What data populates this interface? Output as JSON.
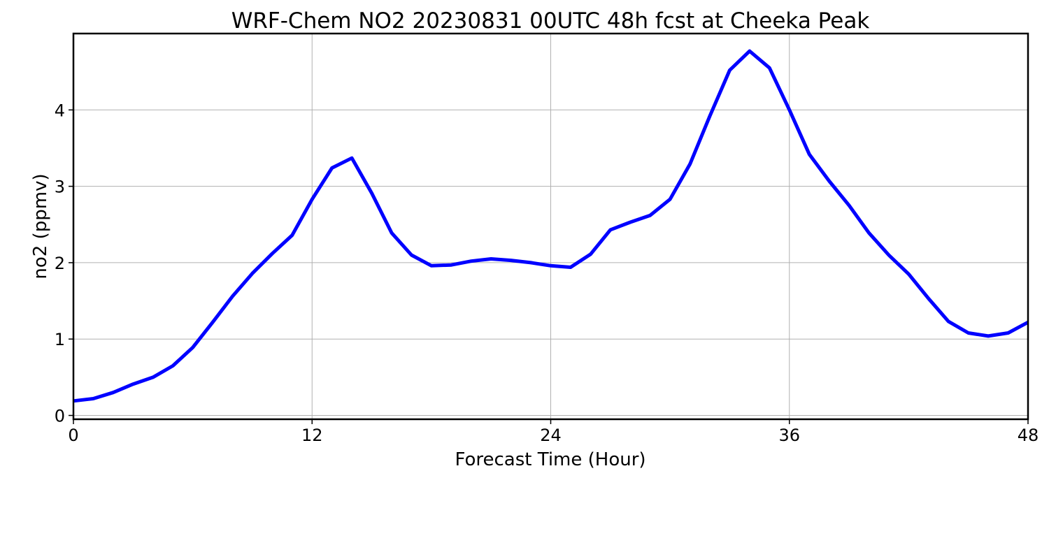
{
  "chart_data": {
    "type": "line",
    "title": "WRF-Chem NO2  20230831 00UTC 48h fcst at Cheeka Peak",
    "xlabel": "Forecast Time (Hour)",
    "ylabel": "no2  (ppmv)",
    "xlim": [
      0,
      48
    ],
    "ylim": [
      -0.05,
      5.0
    ],
    "xticks": [
      0,
      12,
      24,
      36,
      48
    ],
    "yticks": [
      0,
      1,
      2,
      3,
      4
    ],
    "grid": true,
    "line_color": "#0000ff",
    "series": [
      {
        "x": [
          0,
          1,
          2,
          3,
          4,
          5,
          6,
          7,
          8,
          9,
          10,
          11,
          12,
          13,
          14,
          15,
          16,
          17,
          18,
          19,
          20,
          21,
          22,
          23,
          24,
          25,
          26,
          27,
          28,
          29,
          30,
          31,
          32,
          33,
          34,
          35,
          36,
          37,
          38,
          39,
          40,
          41,
          42,
          43,
          44,
          45,
          46,
          47,
          48
        ],
        "values": [
          0.19,
          0.22,
          0.3,
          0.41,
          0.5,
          0.65,
          0.89,
          1.22,
          1.56,
          1.86,
          2.12,
          2.36,
          2.83,
          3.24,
          3.37,
          2.91,
          2.39,
          2.1,
          1.96,
          1.97,
          2.02,
          2.05,
          2.03,
          2.0,
          1.96,
          1.94,
          2.11,
          2.43,
          2.53,
          2.62,
          2.83,
          3.29,
          3.92,
          4.52,
          4.77,
          4.55,
          4.0,
          3.42,
          3.07,
          2.75,
          2.39,
          2.1,
          1.85,
          1.53,
          1.23,
          1.08,
          1.04,
          1.08,
          1.22
        ]
      }
    ]
  }
}
